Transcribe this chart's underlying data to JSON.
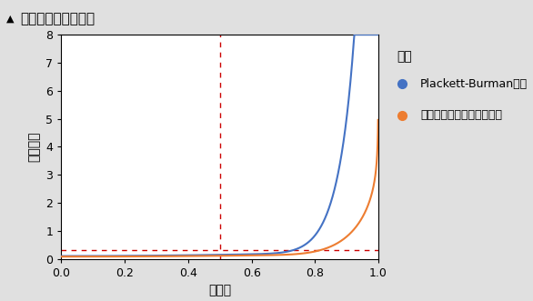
{
  "title": "計画領域率プロット",
  "xlabel": "領域率",
  "ylabel": "予測分散",
  "xlim": [
    0.0,
    1.0
  ],
  "ylim": [
    0.0,
    8.0
  ],
  "yticks": [
    0,
    1,
    2,
    3,
    4,
    5,
    6,
    7,
    8
  ],
  "xticks": [
    0.0,
    0.2,
    0.4,
    0.6,
    0.8,
    1.0
  ],
  "vline_x": 0.5,
  "hline_y": 0.3,
  "vline_color": "#cc0000",
  "hline_color": "#cc0000",
  "pb_color": "#4472C4",
  "dsd_color": "#ED7D31",
  "legend_title": "計画",
  "legend_label_pb": "Plackett-Burman計画",
  "legend_label_dsd": "決定的スクリーニング計画",
  "background_color": "#ffffff",
  "title_bg_color": "#d4d4d4",
  "outer_bg_color": "#e0e0e0",
  "title_fontsize": 11,
  "axis_fontsize": 10,
  "tick_fontsize": 9,
  "legend_fontsize": 9
}
